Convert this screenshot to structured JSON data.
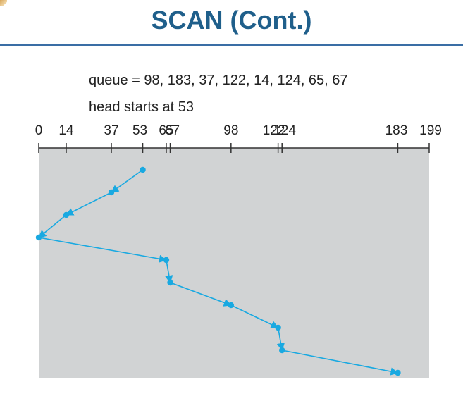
{
  "title": "SCAN (Cont.)",
  "queue_text": "queue = 98, 183, 37, 122, 14, 124, 65, 67",
  "head_text": "head starts at 53",
  "chart_data": {
    "type": "diagram",
    "axis_range": [
      0,
      199
    ],
    "tick_values": [
      0,
      14,
      37,
      53,
      65,
      67,
      98,
      122,
      124,
      183,
      199
    ],
    "tick_labels": [
      "0",
      "14",
      "37",
      "53",
      "65",
      "67",
      "98",
      "122",
      "124",
      "183",
      "199"
    ],
    "path": [
      53,
      37,
      14,
      0,
      65,
      67,
      98,
      122,
      124,
      183
    ],
    "colors": {
      "path": "#19a9e1",
      "background": "#d1d3d4",
      "axis": "#333333",
      "title": "#1f5f8b"
    }
  }
}
